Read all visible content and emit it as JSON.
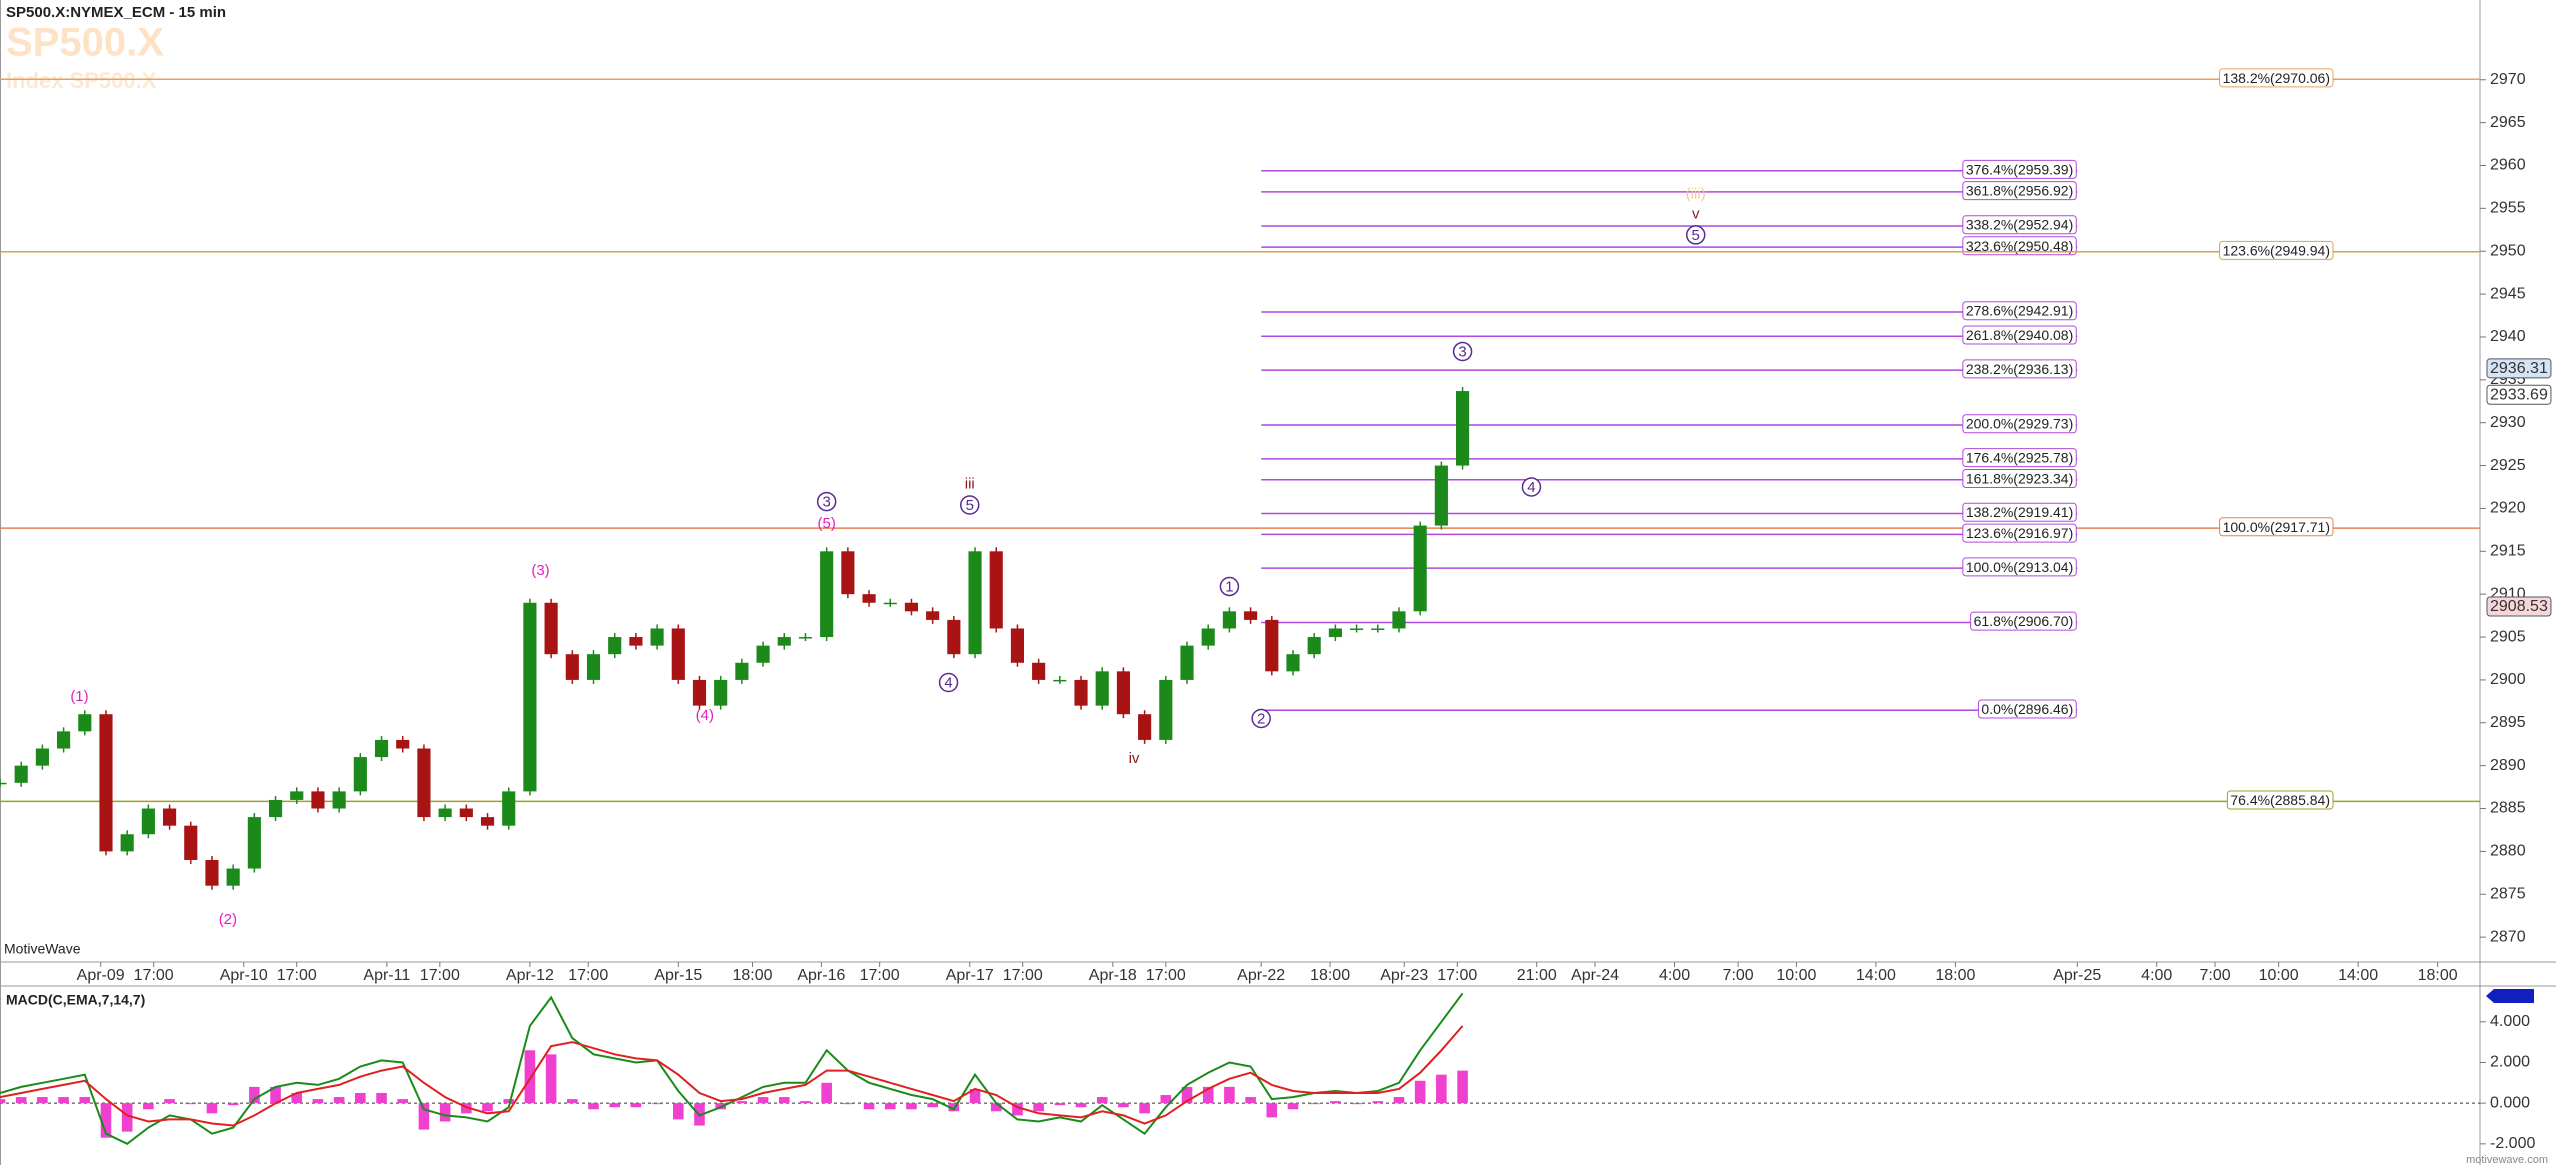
{
  "header": {
    "symbol_line": "SP500.X:NYMEX_ECM - 15 min",
    "symbol": "SP500.X",
    "description": "Index SP500.X",
    "brand": "MotiveWave",
    "site": "motivewave.com"
  },
  "chart_data": {
    "type": "candlestick",
    "xlim": [
      0,
      468
    ],
    "xticks": [
      {
        "value": 19,
        "label": "Apr-09"
      },
      {
        "value": 29,
        "label": "17:00"
      },
      {
        "value": 46,
        "label": "Apr-10"
      },
      {
        "value": 56,
        "label": "17:00"
      },
      {
        "value": 73,
        "label": "Apr-11"
      },
      {
        "value": 83,
        "label": "17:00"
      },
      {
        "value": 100,
        "label": "Apr-12"
      },
      {
        "value": 111,
        "label": "17:00"
      },
      {
        "value": 128,
        "label": "Apr-15"
      },
      {
        "value": 142,
        "label": "18:00"
      },
      {
        "value": 155,
        "label": "Apr-16"
      },
      {
        "value": 166,
        "label": "17:00"
      },
      {
        "value": 183,
        "label": "Apr-17"
      },
      {
        "value": 193,
        "label": "17:00"
      },
      {
        "value": 210,
        "label": "Apr-18"
      },
      {
        "value": 220,
        "label": "17:00"
      },
      {
        "value": 238,
        "label": "Apr-22"
      },
      {
        "value": 251,
        "label": "18:00"
      },
      {
        "value": 265,
        "label": "Apr-23"
      },
      {
        "value": 275,
        "label": "17:00"
      },
      {
        "value": 290,
        "label": "21:00"
      },
      {
        "value": 301,
        "label": "Apr-24"
      },
      {
        "value": 316,
        "label": "4:00"
      },
      {
        "value": 328,
        "label": "7:00"
      },
      {
        "value": 339,
        "label": "10:00"
      },
      {
        "value": 354,
        "label": "14:00"
      },
      {
        "value": 369,
        "label": "18:00"
      },
      {
        "value": 392,
        "label": "Apr-25"
      },
      {
        "value": 407,
        "label": "4:00"
      },
      {
        "value": 418,
        "label": "7:00"
      },
      {
        "value": 430,
        "label": "10:00"
      },
      {
        "value": 445,
        "label": "14:00"
      },
      {
        "value": 460,
        "label": "18:00"
      }
    ],
    "ylim": [
      2867.1,
      2979.3
    ],
    "yticks": [
      2870,
      2875,
      2880,
      2885,
      2890,
      2895,
      2900,
      2905,
      2910,
      2915,
      2920,
      2925,
      2930,
      2935,
      2940,
      2945,
      2950,
      2955,
      2960,
      2965,
      2970
    ],
    "x": [
      0,
      4,
      8,
      12,
      16,
      20,
      24,
      28,
      32,
      36,
      40,
      44,
      48,
      52,
      56,
      60,
      64,
      68,
      72,
      76,
      80,
      84,
      88,
      92,
      96,
      100,
      104,
      108,
      112,
      116,
      120,
      124,
      128,
      132,
      136,
      140,
      144,
      148,
      152,
      156,
      160,
      164,
      168,
      172,
      176,
      180,
      184,
      188,
      192,
      196,
      200,
      204,
      208,
      212,
      216,
      220,
      224,
      228,
      232,
      236,
      240,
      244,
      248,
      252,
      256,
      260,
      264,
      268,
      272,
      276
    ],
    "close": [
      2888,
      2890,
      2892,
      2894,
      2896,
      2880,
      2882,
      2885,
      2883,
      2879,
      2876,
      2878,
      2884,
      2886,
      2887,
      2885,
      2887,
      2891,
      2893,
      2892,
      2884,
      2885,
      2884,
      2883,
      2887,
      2909,
      2903,
      2900,
      2903,
      2905,
      2904,
      2906,
      2900,
      2897,
      2900,
      2902,
      2904,
      2905,
      2905,
      2915,
      2910,
      2909,
      2909,
      2908,
      2907,
      2903,
      2915,
      2906,
      2902,
      2900,
      2900,
      2897,
      2901,
      2896,
      2893,
      2900,
      2904,
      2906,
      2908,
      2907,
      2901,
      2903,
      2905,
      2906,
      2906,
      2906,
      2908,
      2918,
      2925,
      2933.69
    ],
    "up_color": "#1b8a1b",
    "down_color": "#a81414",
    "price_markers": [
      {
        "value": 2936.31,
        "color": "#d4e4f4"
      },
      {
        "value": 2933.69,
        "color": "#ffffff"
      },
      {
        "value": 2908.53,
        "color": "#f6d6d6"
      }
    ],
    "fib_levels": [
      {
        "label": "138.2%(2970.06)",
        "value": 2970.06,
        "color": "#e8a060"
      },
      {
        "label": "376.4%(2959.39)",
        "value": 2959.39,
        "color": "#b048e0",
        "from": 238,
        "to": 392
      },
      {
        "label": "361.8%(2956.92)",
        "value": 2956.92,
        "color": "#b048e0",
        "from": 238,
        "to": 392
      },
      {
        "label": "338.2%(2952.94)",
        "value": 2952.94,
        "color": "#b048e0",
        "from": 238,
        "to": 392
      },
      {
        "label": "323.6%(2950.48)",
        "value": 2950.48,
        "color": "#b048e0",
        "from": 238,
        "to": 392
      },
      {
        "label": "123.6%(2949.94)",
        "value": 2949.94,
        "color": "#e0a040"
      },
      {
        "label": "278.6%(2942.91)",
        "value": 2942.91,
        "color": "#b048e0",
        "from": 238,
        "to": 392
      },
      {
        "label": "261.8%(2940.08)",
        "value": 2940.08,
        "color": "#b048e0",
        "from": 238,
        "to": 392
      },
      {
        "label": "238.2%(2936.13)",
        "value": 2936.13,
        "color": "#b048e0",
        "from": 238,
        "to": 392
      },
      {
        "label": "200.0%(2929.73)",
        "value": 2929.73,
        "color": "#b048e0",
        "from": 238,
        "to": 392
      },
      {
        "label": "176.4%(2925.78)",
        "value": 2925.78,
        "color": "#b048e0",
        "from": 238,
        "to": 392
      },
      {
        "label": "161.8%(2923.34)",
        "value": 2923.34,
        "color": "#b048e0",
        "from": 238,
        "to": 392
      },
      {
        "label": "138.2%(2919.41)",
        "value": 2919.41,
        "color": "#b048e0",
        "from": 238,
        "to": 392
      },
      {
        "label": "100.0%(2917.71)",
        "value": 2917.71,
        "color": "#e88050"
      },
      {
        "label": "123.6%(2916.97)",
        "value": 2916.97,
        "color": "#b048e0",
        "from": 238,
        "to": 392
      },
      {
        "label": "100.0%(2913.04)",
        "value": 2913.04,
        "color": "#b048e0",
        "from": 238,
        "to": 392
      },
      {
        "label": "61.8%(2906.70)",
        "value": 2906.7,
        "color": "#b048e0",
        "from": 238,
        "to": 392
      },
      {
        "label": "0.0%(2896.46)",
        "value": 2896.46,
        "color": "#b048e0",
        "from": 238,
        "to": 392
      },
      {
        "label": "76.4%(2885.84)",
        "value": 2885.84,
        "color": "#a0a020"
      }
    ],
    "waves": [
      {
        "text": "(1)",
        "x": 15,
        "y": 2898.1,
        "color": "#e020c0"
      },
      {
        "text": "(2)",
        "x": 43,
        "y": 2872.1,
        "color": "#e020c0"
      },
      {
        "text": "(3)",
        "x": 102,
        "y": 2912.8,
        "color": "#e020c0"
      },
      {
        "text": "(4)",
        "x": 133,
        "y": 2895.9,
        "color": "#e020c0"
      },
      {
        "text": "3",
        "x": 156,
        "y": 2920.8,
        "color": "#5a2a90",
        "circled": true
      },
      {
        "text": "(5)",
        "x": 156,
        "y": 2918.3,
        "color": "#e020c0"
      },
      {
        "text": "iii",
        "x": 183,
        "y": 2922.9,
        "color": "#8b1a1a"
      },
      {
        "text": "5",
        "x": 183,
        "y": 2920.4,
        "color": "#5a2a90",
        "circled": true
      },
      {
        "text": "4",
        "x": 179,
        "y": 2899.7,
        "color": "#5a2a90",
        "circled": true
      },
      {
        "text": "iv",
        "x": 214,
        "y": 2890.9,
        "color": "#8b1a1a"
      },
      {
        "text": "1",
        "x": 232,
        "y": 2910.9,
        "color": "#5a2a90",
        "circled": true
      },
      {
        "text": "2",
        "x": 238,
        "y": 2895.5,
        "color": "#5a2a90",
        "circled": true
      },
      {
        "text": "3",
        "x": 276,
        "y": 2938.3,
        "color": "#5a2a90",
        "circled": true
      },
      {
        "text": "4",
        "x": 289,
        "y": 2922.5,
        "color": "#5a2a90",
        "circled": true
      },
      {
        "text": "(iii)",
        "x": 320,
        "y": 2956.7,
        "color": "#f5c890"
      },
      {
        "text": "v",
        "x": 320,
        "y": 2954.4,
        "color": "#8b1a1a"
      },
      {
        "text": "5",
        "x": 320,
        "y": 2951.9,
        "color": "#5a2a90",
        "circled": true
      }
    ],
    "macd": {
      "title": "MACD(C,EMA,7,14,7)",
      "ylim": [
        -3.04,
        5.76
      ],
      "yticks": [
        {
          "value": -2,
          "label": "-2.000"
        },
        {
          "value": 0,
          "label": "0.000"
        },
        {
          "value": 2,
          "label": "2.000"
        },
        {
          "value": 4,
          "label": "4.000"
        }
      ],
      "line": {
        "color": "#1a8a1a",
        "values": [
          0.5,
          0.8,
          1.0,
          1.2,
          1.4,
          -1.5,
          -2.0,
          -1.2,
          -0.6,
          -0.8,
          -1.5,
          -1.2,
          0.2,
          0.8,
          1.0,
          0.9,
          1.2,
          1.8,
          2.1,
          2.0,
          -0.3,
          -0.6,
          -0.7,
          -0.9,
          -0.2,
          3.8,
          5.2,
          3.2,
          2.4,
          2.2,
          2.0,
          2.1,
          0.6,
          -0.6,
          -0.2,
          0.3,
          0.8,
          1.0,
          1.0,
          2.6,
          1.6,
          1.0,
          0.7,
          0.4,
          0.2,
          -0.3,
          1.4,
          0.0,
          -0.8,
          -0.9,
          -0.7,
          -0.9,
          -0.1,
          -0.8,
          -1.5,
          -0.2,
          0.9,
          1.5,
          2.0,
          1.8,
          0.2,
          0.3,
          0.5,
          0.6,
          0.5,
          0.6,
          1.0,
          2.6,
          4.0,
          5.4
        ]
      },
      "signal": {
        "color": "#e02020",
        "values": [
          0.3,
          0.5,
          0.7,
          0.9,
          1.1,
          0.2,
          -0.6,
          -0.9,
          -0.8,
          -0.8,
          -1.0,
          -1.1,
          -0.6,
          0.0,
          0.5,
          0.7,
          0.9,
          1.3,
          1.6,
          1.8,
          1.0,
          0.3,
          -0.2,
          -0.5,
          -0.4,
          1.2,
          2.8,
          3.0,
          2.7,
          2.4,
          2.2,
          2.1,
          1.4,
          0.5,
          0.1,
          0.2,
          0.5,
          0.7,
          0.9,
          1.6,
          1.6,
          1.3,
          1.0,
          0.7,
          0.4,
          0.1,
          0.7,
          0.4,
          -0.2,
          -0.5,
          -0.6,
          -0.7,
          -0.4,
          -0.6,
          -1.0,
          -0.6,
          0.1,
          0.7,
          1.2,
          1.5,
          0.9,
          0.6,
          0.5,
          0.5,
          0.5,
          0.5,
          0.7,
          1.5,
          2.6,
          3.8
        ]
      },
      "histogram": {
        "color": "#f040d0",
        "values": [
          0.2,
          0.3,
          0.3,
          0.3,
          0.3,
          -1.7,
          -1.4,
          -0.3,
          0.2,
          0.0,
          -0.5,
          -0.1,
          0.8,
          0.8,
          0.5,
          0.2,
          0.3,
          0.5,
          0.5,
          0.2,
          -1.3,
          -0.9,
          -0.5,
          -0.4,
          0.2,
          2.6,
          2.4,
          0.2,
          -0.3,
          -0.2,
          -0.2,
          0.0,
          -0.8,
          -1.1,
          -0.3,
          0.1,
          0.3,
          0.3,
          0.1,
          1.0,
          0.0,
          -0.3,
          -0.3,
          -0.3,
          -0.2,
          -0.4,
          0.7,
          -0.4,
          -0.6,
          -0.4,
          -0.1,
          -0.2,
          0.3,
          -0.2,
          -0.5,
          0.4,
          0.8,
          0.8,
          0.8,
          0.3,
          -0.7,
          -0.3,
          0.0,
          0.1,
          0.0,
          0.1,
          0.3,
          1.1,
          1.4,
          1.6
        ]
      }
    }
  }
}
